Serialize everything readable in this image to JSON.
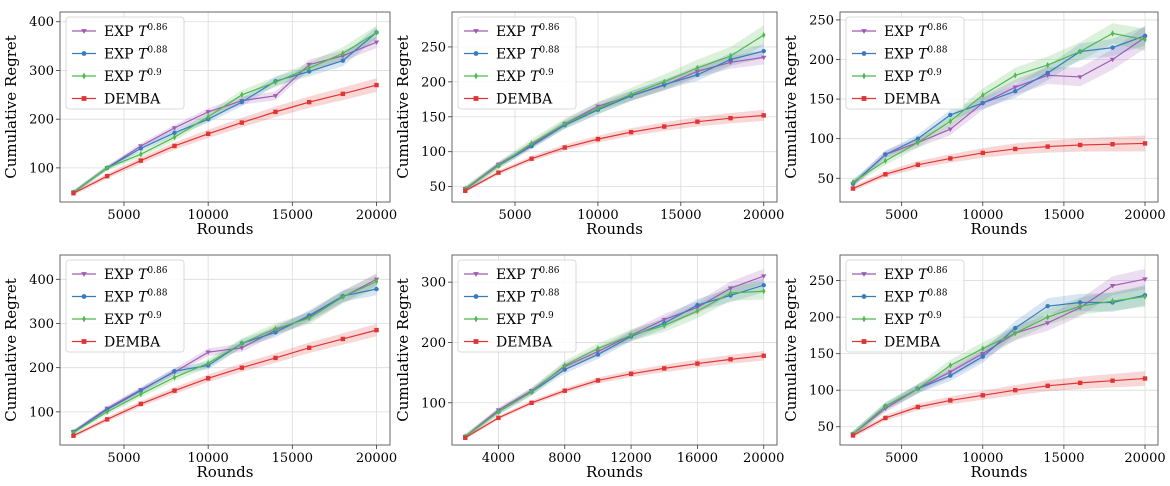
{
  "colors": {
    "exp086": "#a05cb5",
    "exp088": "#3a7bbf",
    "exp09": "#4fb84f",
    "demba": "#e03535",
    "grid": "#dcdcdc",
    "frame": "#555555"
  },
  "legend": [
    {
      "key": "exp086",
      "base": "EXP ",
      "var": "T",
      "sup": "0.86",
      "marker": "triangle-down"
    },
    {
      "key": "exp088",
      "base": "EXP ",
      "var": "T",
      "sup": "0.88",
      "marker": "circle"
    },
    {
      "key": "exp09",
      "base": "EXP ",
      "var": "T",
      "sup": "0.9",
      "marker": "diamond"
    },
    {
      "key": "demba",
      "base": "DEMBA",
      "var": "",
      "sup": "",
      "marker": "square"
    }
  ],
  "chart_data": [
    {
      "type": "line",
      "xlabel": "Rounds",
      "ylabel": "Cumulative Regret",
      "xlim": [
        1200,
        20800
      ],
      "ylim": [
        30,
        420
      ],
      "xticks": [
        5000,
        10000,
        15000,
        20000
      ],
      "yticks": [
        100,
        200,
        300,
        400
      ],
      "grid": true,
      "legend_position": "top-left",
      "x": [
        2000,
        4000,
        6000,
        8000,
        10000,
        12000,
        14000,
        16000,
        18000,
        20000
      ],
      "series": [
        {
          "key": "exp086",
          "values": [
            50,
            100,
            145,
            182,
            215,
            238,
            248,
            312,
            330,
            358
          ],
          "band": 12
        },
        {
          "key": "exp088",
          "values": [
            50,
            100,
            140,
            172,
            200,
            235,
            278,
            298,
            320,
            378
          ],
          "band": 12
        },
        {
          "key": "exp09",
          "values": [
            50,
            100,
            128,
            163,
            205,
            250,
            276,
            305,
            335,
            378
          ],
          "band": 14
        },
        {
          "key": "demba",
          "values": [
            48,
            83,
            115,
            145,
            170,
            193,
            215,
            235,
            252,
            270
          ],
          "band": 14
        }
      ]
    },
    {
      "type": "line",
      "xlabel": "Rounds",
      "ylabel": "Cumulative Regret",
      "xlim": [
        1200,
        20800
      ],
      "ylim": [
        28,
        300
      ],
      "xticks": [
        5000,
        10000,
        15000,
        20000
      ],
      "yticks": [
        50,
        100,
        150,
        200,
        250
      ],
      "grid": true,
      "legend_position": "top-left",
      "x": [
        2000,
        4000,
        6000,
        8000,
        10000,
        12000,
        14000,
        16000,
        18000,
        20000
      ],
      "series": [
        {
          "key": "exp086",
          "values": [
            47,
            82,
            110,
            140,
            165,
            180,
            195,
            215,
            228,
            235
          ],
          "band": 10
        },
        {
          "key": "exp088",
          "values": [
            46,
            80,
            108,
            138,
            160,
            180,
            196,
            210,
            232,
            244
          ],
          "band": 10
        },
        {
          "key": "exp09",
          "values": [
            47,
            80,
            112,
            140,
            162,
            182,
            200,
            220,
            237,
            267
          ],
          "band": 14
        },
        {
          "key": "demba",
          "values": [
            44,
            70,
            90,
            106,
            118,
            128,
            136,
            143,
            148,
            152
          ],
          "band": 8
        }
      ]
    },
    {
      "type": "line",
      "xlabel": "Rounds",
      "ylabel": "Cumulative Regret",
      "xlim": [
        1200,
        20800
      ],
      "ylim": [
        20,
        260
      ],
      "xticks": [
        5000,
        10000,
        15000,
        20000
      ],
      "yticks": [
        50,
        100,
        150,
        200,
        250
      ],
      "grid": true,
      "legend_position": "top-left",
      "x": [
        2000,
        4000,
        6000,
        8000,
        10000,
        12000,
        14000,
        16000,
        18000,
        20000
      ],
      "series": [
        {
          "key": "exp086",
          "values": [
            43,
            80,
            95,
            112,
            145,
            165,
            180,
            178,
            200,
            228
          ],
          "band": 14
        },
        {
          "key": "exp088",
          "values": [
            43,
            80,
            100,
            130,
            145,
            160,
            183,
            210,
            215,
            230
          ],
          "band": 12
        },
        {
          "key": "exp09",
          "values": [
            45,
            72,
            95,
            122,
            155,
            180,
            193,
            210,
            233,
            225
          ],
          "band": 14
        },
        {
          "key": "demba",
          "values": [
            37,
            55,
            67,
            75,
            82,
            87,
            90,
            92,
            93,
            94
          ],
          "band": 10
        }
      ]
    },
    {
      "type": "line",
      "xlabel": "Rounds",
      "ylabel": "Cumulative Regret",
      "xlim": [
        1200,
        20800
      ],
      "ylim": [
        25,
        455
      ],
      "xticks": [
        5000,
        10000,
        15000,
        20000
      ],
      "yticks": [
        100,
        200,
        300,
        400
      ],
      "grid": true,
      "legend_position": "top-left",
      "x": [
        2000,
        4000,
        6000,
        8000,
        10000,
        12000,
        14000,
        16000,
        18000,
        20000
      ],
      "series": [
        {
          "key": "exp086",
          "values": [
            55,
            108,
            150,
            190,
            235,
            245,
            285,
            315,
            360,
            400
          ],
          "band": 14
        },
        {
          "key": "exp088",
          "values": [
            55,
            105,
            148,
            192,
            205,
            255,
            280,
            318,
            362,
            378
          ],
          "band": 14
        },
        {
          "key": "exp09",
          "values": [
            53,
            100,
            140,
            178,
            210,
            255,
            288,
            312,
            360,
            395
          ],
          "band": 16
        },
        {
          "key": "demba",
          "values": [
            46,
            83,
            118,
            148,
            176,
            200,
            222,
            245,
            265,
            285
          ],
          "band": 14
        }
      ]
    },
    {
      "type": "line",
      "xlabel": "Rounds",
      "ylabel": "Cumulative Regret",
      "xlim": [
        1200,
        20800
      ],
      "ylim": [
        30,
        345
      ],
      "xticks": [
        4000,
        8000,
        12000,
        16000,
        20000
      ],
      "yticks": [
        100,
        200,
        300
      ],
      "grid": true,
      "legend_position": "top-left",
      "x": [
        2000,
        4000,
        6000,
        8000,
        10000,
        12000,
        14000,
        16000,
        18000,
        20000
      ],
      "series": [
        {
          "key": "exp086",
          "values": [
            44,
            88,
            120,
            160,
            185,
            212,
            238,
            258,
            290,
            310
          ],
          "band": 12
        },
        {
          "key": "exp088",
          "values": [
            44,
            85,
            118,
            155,
            180,
            210,
            232,
            262,
            278,
            295
          ],
          "band": 12
        },
        {
          "key": "exp09",
          "values": [
            44,
            85,
            118,
            162,
            190,
            212,
            228,
            252,
            282,
            285
          ],
          "band": 14
        },
        {
          "key": "demba",
          "values": [
            42,
            75,
            100,
            120,
            137,
            148,
            157,
            165,
            172,
            178
          ],
          "band": 8
        }
      ]
    },
    {
      "type": "line",
      "xlabel": "Rounds",
      "ylabel": "Cumulative Regret",
      "xlim": [
        1200,
        20800
      ],
      "ylim": [
        25,
        285
      ],
      "xticks": [
        5000,
        10000,
        15000,
        20000
      ],
      "yticks": [
        50,
        100,
        150,
        200,
        250
      ],
      "grid": true,
      "legend_position": "top-left",
      "x": [
        2000,
        4000,
        6000,
        8000,
        10000,
        12000,
        14000,
        16000,
        18000,
        20000
      ],
      "series": [
        {
          "key": "exp086",
          "values": [
            40,
            75,
            102,
            125,
            150,
            178,
            192,
            213,
            243,
            252
          ],
          "band": 14
        },
        {
          "key": "exp088",
          "values": [
            40,
            78,
            102,
            120,
            146,
            185,
            215,
            220,
            220,
            230
          ],
          "band": 14
        },
        {
          "key": "exp09",
          "values": [
            40,
            78,
            102,
            134,
            157,
            178,
            200,
            215,
            222,
            228
          ],
          "band": 14
        },
        {
          "key": "demba",
          "values": [
            38,
            62,
            77,
            86,
            93,
            100,
            106,
            110,
            113,
            116
          ],
          "band": 10
        }
      ]
    }
  ]
}
